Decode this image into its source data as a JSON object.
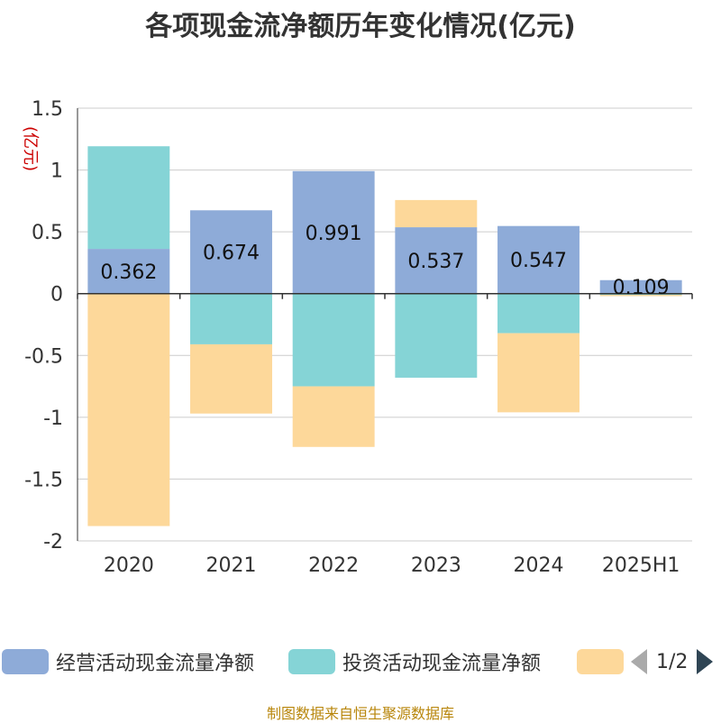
{
  "title": "各项现金流净额历年变化情况(亿元)",
  "source": "制图数据来自恒生聚源数据库",
  "pager": {
    "text": "1/2"
  },
  "colors": {
    "operating": "#8eabd8",
    "investing": "#85d4d6",
    "financing": "#fdd89a"
  },
  "chart_data": {
    "type": "bar",
    "stacked": true,
    "title": "各项现金流净额历年变化情况(亿元)",
    "ylabel": "(亿元)",
    "ylim": [
      -2,
      1.5
    ],
    "yticks": [
      1.5,
      1,
      0.5,
      0,
      -0.5,
      -1,
      -1.5,
      -2
    ],
    "ytick_labels": [
      "1.5",
      "1",
      "0.5",
      "0",
      "-0.5",
      "-1",
      "-1.5",
      "-2"
    ],
    "grid": true,
    "legend_position": "bottom",
    "categories": [
      "2020",
      "2021",
      "2022",
      "2023",
      "2024",
      "2025H1"
    ],
    "series": [
      {
        "name": "经营活动现金流量净额",
        "color_key": "operating",
        "values": [
          0.362,
          0.674,
          0.991,
          0.537,
          0.547,
          0.109
        ],
        "data_labels": [
          "0.362",
          "0.674",
          "0.991",
          "0.537",
          "0.547",
          "0.109"
        ]
      },
      {
        "name": "投资活动现金流量净额",
        "color_key": "investing",
        "values": [
          0.83,
          -0.41,
          -0.75,
          -0.68,
          -0.32,
          -0.01
        ]
      },
      {
        "name": "",
        "color_key": "financing",
        "values": [
          -1.88,
          -0.56,
          -0.49,
          0.22,
          -0.64,
          -0.01
        ]
      }
    ]
  }
}
